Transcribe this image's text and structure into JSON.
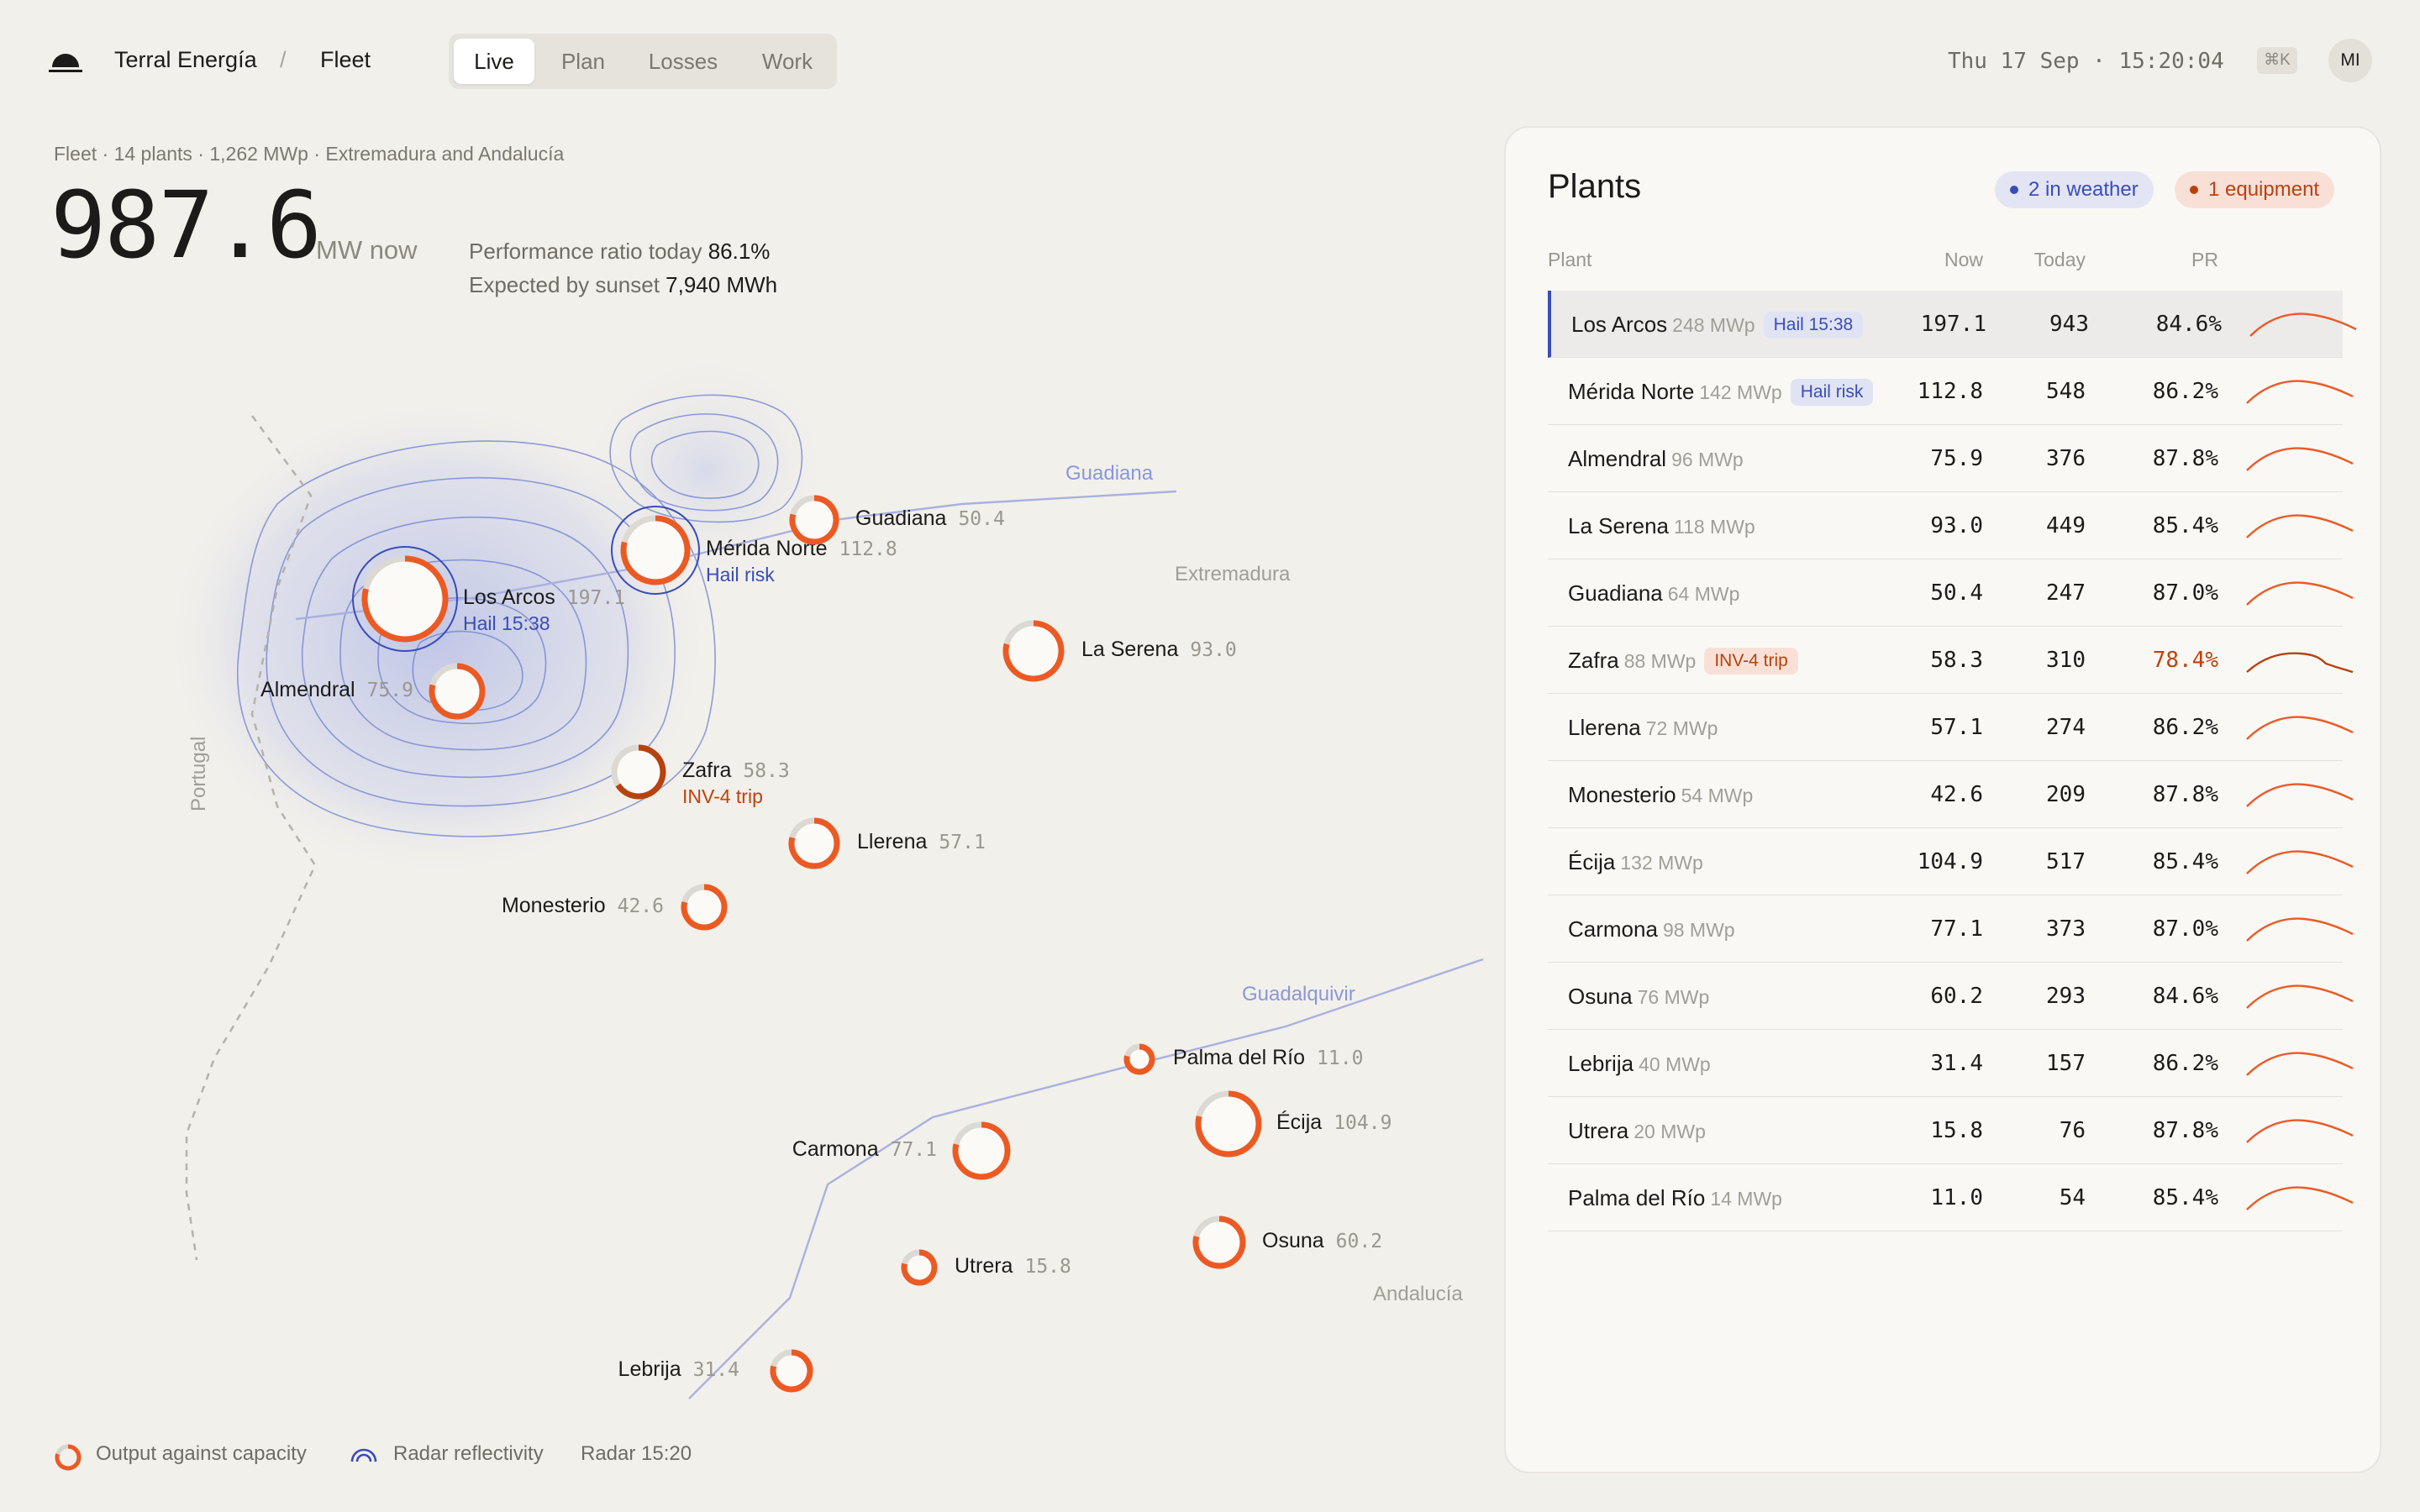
{
  "header": {
    "brand": "Terral Energía",
    "separator": "/",
    "crumb": "Fleet",
    "tabs": [
      {
        "label": "Live",
        "active": true
      },
      {
        "label": "Plan",
        "active": false
      },
      {
        "label": "Losses",
        "active": false
      },
      {
        "label": "Work",
        "active": false
      }
    ],
    "datetime": "Thu 17 Sep · 15:20:04",
    "shortcut": "⌘K",
    "avatar_initials": "MI"
  },
  "summary": {
    "fleet_line": "Fleet · 14 plants · 1,262 MWp · Extremadura and Andalucía",
    "output_value": "987.6",
    "output_unit": "MW now",
    "pr_label": "Performance ratio today",
    "pr_value": "86.1%",
    "expected_label": "Expected by sunset",
    "expected_value": "7,940 MWh"
  },
  "map": {
    "region_labels": {
      "guadiana": "Guadiana",
      "extremadura": "Extremadura",
      "portugal": "Portugal",
      "guadalquivir": "Guadalquivir",
      "andalucia": "Andalucía"
    },
    "markers": [
      {
        "name": "Los Arcos",
        "value": "197.1",
        "fraction": 0.79,
        "note": "Hail 15:38",
        "note_type": "weather"
      },
      {
        "name": "Mérida Norte",
        "value": "112.8",
        "fraction": 0.79,
        "note": "Hail risk",
        "note_type": "weather"
      },
      {
        "name": "Guadiana",
        "value": "50.4",
        "fraction": 0.79
      },
      {
        "name": "La Serena",
        "value": "93.0",
        "fraction": 0.79
      },
      {
        "name": "Almendral",
        "value": "75.9",
        "fraction": 0.79
      },
      {
        "name": "Zafra",
        "value": "58.3",
        "fraction": 0.66,
        "note": "INV-4 trip",
        "note_type": "equipment"
      },
      {
        "name": "Llerena",
        "value": "57.1",
        "fraction": 0.79
      },
      {
        "name": "Monesterio",
        "value": "42.6",
        "fraction": 0.79
      },
      {
        "name": "Palma del Río",
        "value": "11.0",
        "fraction": 0.79
      },
      {
        "name": "Écija",
        "value": "104.9",
        "fraction": 0.79
      },
      {
        "name": "Carmona",
        "value": "77.1",
        "fraction": 0.79
      },
      {
        "name": "Osuna",
        "value": "60.2",
        "fraction": 0.79
      },
      {
        "name": "Utrera",
        "value": "15.8",
        "fraction": 0.79
      },
      {
        "name": "Lebrija",
        "value": "31.4",
        "fraction": 0.79
      }
    ]
  },
  "legend": {
    "output_label": "Output against capacity",
    "radar_label": "Radar reflectivity",
    "radar_time": "Radar 15:20"
  },
  "plants_panel": {
    "title": "Plants",
    "badge_weather": "2 in weather",
    "badge_equipment": "1 equipment",
    "columns": {
      "plant": "Plant",
      "now": "Now",
      "today": "Today",
      "pr": "PR"
    },
    "rows": [
      {
        "name": "Los Arcos",
        "capacity": "248 MWp",
        "tag": "Hail 15:38",
        "tag_type": "weather",
        "now": "197.1",
        "today": "943",
        "pr": "84.6%",
        "selected": true
      },
      {
        "name": "Mérida Norte",
        "capacity": "142 MWp",
        "tag": "Hail risk",
        "tag_type": "weather",
        "now": "112.8",
        "today": "548",
        "pr": "86.2%"
      },
      {
        "name": "Almendral",
        "capacity": "96 MWp",
        "now": "75.9",
        "today": "376",
        "pr": "87.8%"
      },
      {
        "name": "La Serena",
        "capacity": "118 MWp",
        "now": "93.0",
        "today": "449",
        "pr": "85.4%"
      },
      {
        "name": "Guadiana",
        "capacity": "64 MWp",
        "now": "50.4",
        "today": "247",
        "pr": "87.0%"
      },
      {
        "name": "Zafra",
        "capacity": "88 MWp",
        "tag": "INV-4 trip",
        "tag_type": "equipment",
        "now": "58.3",
        "today": "310",
        "pr": "78.4%",
        "warn": true
      },
      {
        "name": "Llerena",
        "capacity": "72 MWp",
        "now": "57.1",
        "today": "274",
        "pr": "86.2%"
      },
      {
        "name": "Monesterio",
        "capacity": "54 MWp",
        "now": "42.6",
        "today": "209",
        "pr": "87.8%"
      },
      {
        "name": "Écija",
        "capacity": "132 MWp",
        "now": "104.9",
        "today": "517",
        "pr": "85.4%"
      },
      {
        "name": "Carmona",
        "capacity": "98 MWp",
        "now": "77.1",
        "today": "373",
        "pr": "87.0%"
      },
      {
        "name": "Osuna",
        "capacity": "76 MWp",
        "now": "60.2",
        "today": "293",
        "pr": "84.6%"
      },
      {
        "name": "Lebrija",
        "capacity": "40 MWp",
        "now": "31.4",
        "today": "157",
        "pr": "86.2%"
      },
      {
        "name": "Utrera",
        "capacity": "20 MWp",
        "now": "15.8",
        "today": "76",
        "pr": "87.8%"
      },
      {
        "name": "Palma del Río",
        "capacity": "14 MWp",
        "now": "11.0",
        "today": "54",
        "pr": "85.4%"
      }
    ]
  },
  "colors": {
    "accent_orange": "#ec5a24",
    "weather_blue": "#3a4cb8",
    "equipment_red": "#b8420f",
    "background": "#f2f0eb"
  }
}
